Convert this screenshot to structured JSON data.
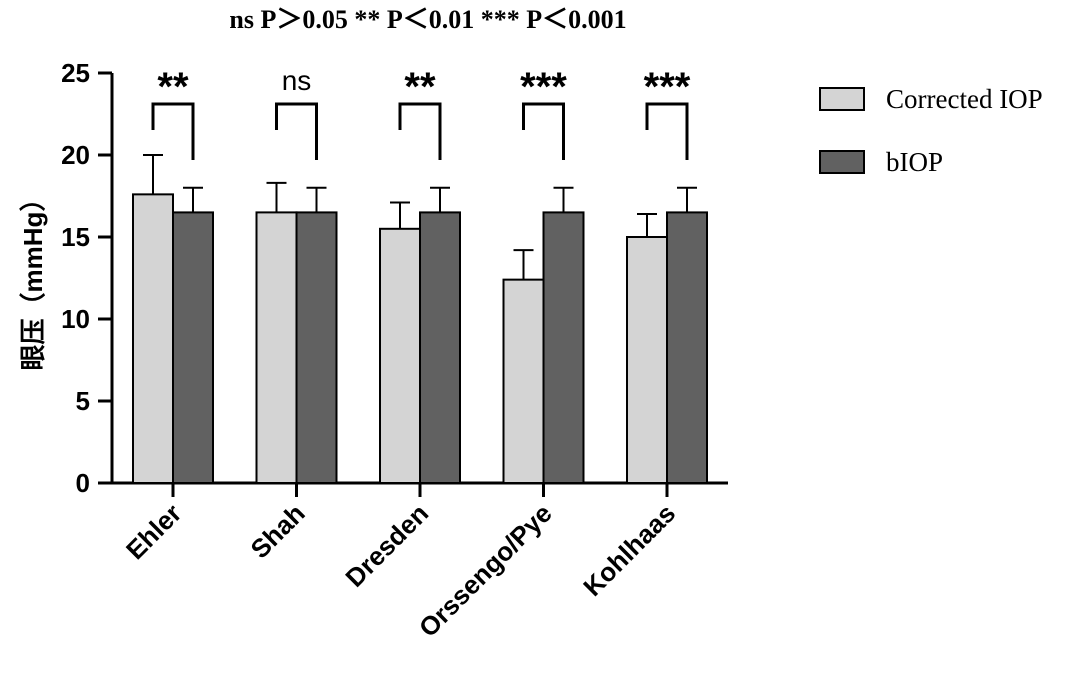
{
  "chart_data": {
    "type": "bar",
    "title": "ns P＞0.05   ** P＜0.01   *** P＜0.001",
    "ylabel": "眼压（mmHg）",
    "xlabel": "",
    "ylim": [
      0,
      25
    ],
    "yticks": [
      0,
      5,
      10,
      15,
      20,
      25
    ],
    "categories": [
      "Ehler",
      "Shah",
      "Dresden",
      "Orssengo/Pye",
      "Kohlhaas"
    ],
    "series": [
      {
        "name": "Corrected IOP",
        "color": "#d4d4d4",
        "values": [
          17.6,
          16.5,
          15.5,
          12.4,
          15.0
        ],
        "errors": [
          2.4,
          1.8,
          1.6,
          1.8,
          1.4
        ]
      },
      {
        "name": "bIOP",
        "color": "#616161",
        "values": [
          16.5,
          16.5,
          16.5,
          16.5,
          16.5
        ],
        "errors": [
          1.5,
          1.5,
          1.5,
          1.5,
          1.5
        ]
      }
    ],
    "significance": [
      "**",
      "ns",
      "**",
      "***",
      "***"
    ],
    "legend_position": "top-right",
    "grid": false
  }
}
